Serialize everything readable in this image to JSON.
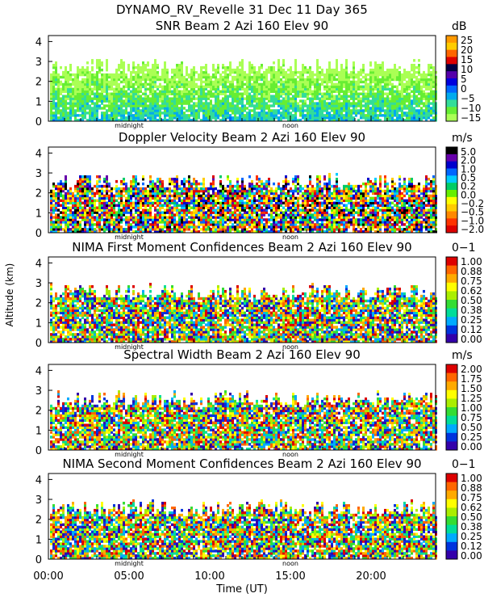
{
  "figure": {
    "title": "DYNAMO_RV_Revelle   31 Dec 11 Day 365",
    "ylabel": "Altitude (km)",
    "xlabel": "Time (UT)",
    "x_tick_labels": [
      "00:00",
      "05:00",
      "10:00",
      "15:00",
      "20:00"
    ],
    "marker_labels": [
      "midnight",
      "noon"
    ]
  },
  "chart_data": [
    {
      "type": "heatmap",
      "title": "SNR Beam 2 Azi 160 Elev 90",
      "unit": "dB",
      "x": [
        0,
        24
      ],
      "xlabel": "Time (UT)",
      "ylim": [
        0,
        4.3
      ],
      "yticks": [
        0,
        1,
        2,
        3,
        4
      ],
      "colorbar_ticks": [
        "25",
        "20",
        "15",
        "10",
        "5",
        "0",
        "−5",
        "−10",
        "−15"
      ],
      "colorbar_colors": [
        "#ff9900",
        "#ffcc00",
        "#ff6600",
        "#dd0000",
        "#000044",
        "#5500aa",
        "#0000dd",
        "#0066ff",
        "#00aaee",
        "#33dd99",
        "#66ee33",
        "#aaff55"
      ]
    },
    {
      "type": "heatmap",
      "title": "Doppler Velocity Beam 2 Azi 160 Elev 90",
      "unit": "m/s",
      "x": [
        0,
        24
      ],
      "xlabel": "Time (UT)",
      "ylim": [
        0,
        4.3
      ],
      "yticks": [
        0,
        1,
        2,
        3,
        4
      ],
      "colorbar_ticks": [
        "5.0",
        "2.0",
        "1.0",
        "0.5",
        "0.2",
        "0.0",
        "−0.2",
        "−0.5",
        "−1.0",
        "−2.0"
      ],
      "colorbar_colors": [
        "#000000",
        "#6600aa",
        "#0000cc",
        "#0066ff",
        "#00ccff",
        "#00cc66",
        "#66ee00",
        "#ffff00",
        "#ffcc00",
        "#ff8800",
        "#ff3300",
        "#dd0000"
      ]
    },
    {
      "type": "heatmap",
      "title": "NIMA First Moment Confidences Beam 2 Azi 160 Elev 90",
      "unit": "0−1",
      "x": [
        0,
        24
      ],
      "xlabel": "Time (UT)",
      "ylim": [
        0,
        4.3
      ],
      "yticks": [
        0,
        1,
        2,
        3,
        4
      ],
      "colorbar_ticks": [
        "1.00",
        "0.88",
        "0.75",
        "0.62",
        "0.50",
        "0.38",
        "0.25",
        "0.12",
        "0.00"
      ],
      "colorbar_colors": [
        "#dd0000",
        "#ff6600",
        "#ffaa00",
        "#ffff00",
        "#aaee00",
        "#33dd33",
        "#00dd99",
        "#00aaff",
        "#0033dd",
        "#3300aa"
      ]
    },
    {
      "type": "heatmap",
      "title": "Spectral Width Beam 2 Azi 160 Elev 90",
      "unit": "m/s",
      "x": [
        0,
        24
      ],
      "xlabel": "Time (UT)",
      "ylim": [
        0,
        4.3
      ],
      "yticks": [
        0,
        1,
        2,
        3,
        4
      ],
      "colorbar_ticks": [
        "2.00",
        "1.75",
        "1.50",
        "1.25",
        "1.00",
        "0.75",
        "0.50",
        "0.25",
        "0.00"
      ],
      "colorbar_colors": [
        "#dd0000",
        "#ff6600",
        "#ffaa00",
        "#ffff00",
        "#aaee00",
        "#33dd33",
        "#00dd99",
        "#00aaff",
        "#0033dd",
        "#3300aa"
      ]
    },
    {
      "type": "heatmap",
      "title": "NIMA Second Moment Confidences Beam 2 Azi 160 Elev 90",
      "unit": "0−1",
      "x": [
        0,
        24
      ],
      "xlabel": "Time (UT)",
      "ylim": [
        0,
        4.3
      ],
      "yticks": [
        0,
        1,
        2,
        3,
        4
      ],
      "colorbar_ticks": [
        "1.00",
        "0.88",
        "0.75",
        "0.62",
        "0.50",
        "0.38",
        "0.25",
        "0.12",
        "0.00"
      ],
      "colorbar_colors": [
        "#dd0000",
        "#ff6600",
        "#ffaa00",
        "#ffff00",
        "#aaee00",
        "#33dd33",
        "#00dd99",
        "#00aaff",
        "#0033dd",
        "#3300aa"
      ]
    }
  ]
}
